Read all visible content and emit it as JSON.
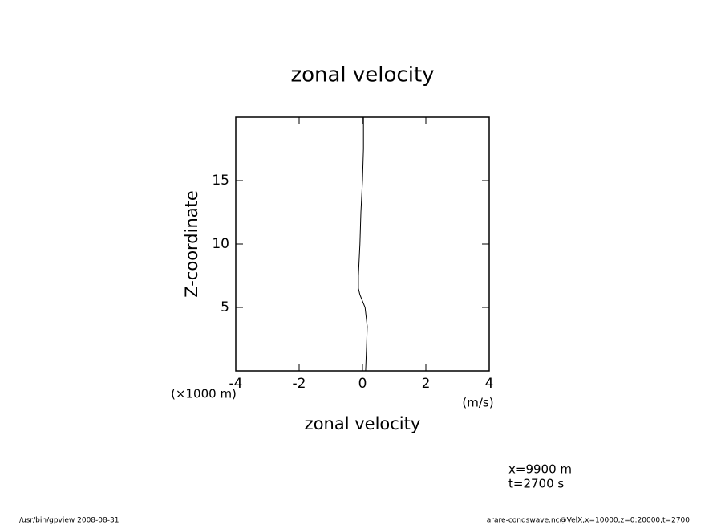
{
  "chart_data": {
    "type": "line",
    "title": "zonal velocity",
    "x_label": "zonal velocity",
    "x_units": "(m/s)",
    "y_label": "Z-coordinate",
    "y_units": "(×1000 m)",
    "x": [
      0.1,
      0.13,
      0.15,
      0.08,
      -0.08,
      -0.13,
      -0.13,
      -0.08,
      -0.05,
      0,
      0.03,
      0.03
    ],
    "y": [
      0,
      2,
      3.5,
      5,
      6,
      6.5,
      7.5,
      10,
      12.5,
      15,
      17.5,
      20
    ],
    "color": "#000000",
    "xlim": [
      -4,
      4
    ],
    "xticks": [
      -4,
      -2,
      0,
      2,
      4
    ],
    "ylim": [
      0,
      20
    ],
    "yticks": [
      5,
      10,
      15
    ],
    "annotations": [
      "x=9900 m",
      "t=2700 s"
    ],
    "footer_left": "/usr/bin/gpview   2008-08-31",
    "footer_right": "arare-condswave.nc@VelX,x=10000,z=0:20000,t=2700"
  }
}
